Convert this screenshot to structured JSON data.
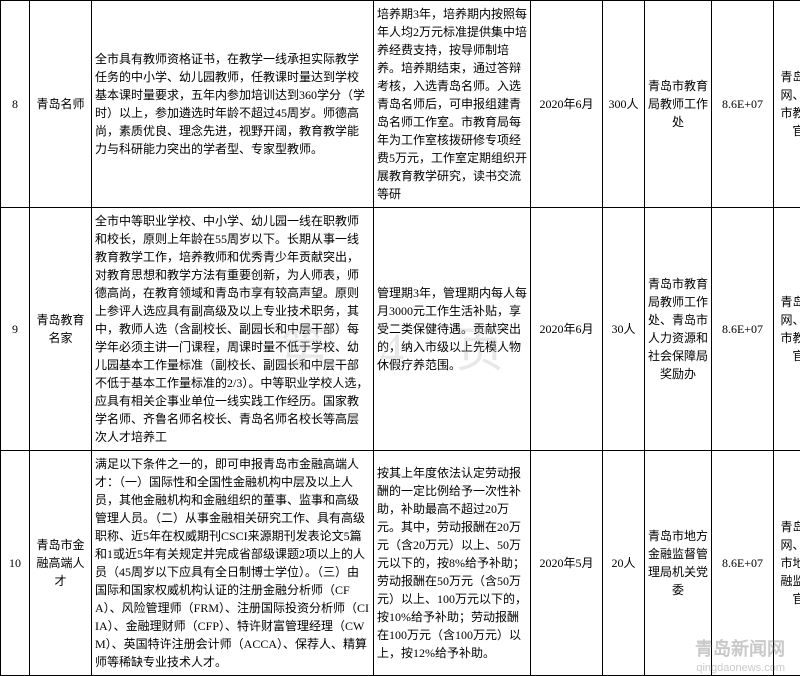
{
  "watermark": {
    "page": "第 4 页",
    "logo": "青岛新闻网",
    "domain": "qingdaonews.com"
  },
  "rows": [
    {
      "idx": "8",
      "name": "青岛名师",
      "desc": "全市具有教师资格证书，在教学一线承担实际教学任务的中小学、幼儿园教师，任教课时量达到学校基本课时量要求，五年内参加培训达到360学分（学时）以上，参加遴选时年龄不超过45周岁。师德高尚，素质优良、理念先进，视野开阔，教育教学能力与科研能力突出的学者型、专家型教师。",
      "policy": "培养期3年，培养期内按照每年人均2万元标准提供集中培养经费支持，按导师制培养。培养期结束，通过答辩考核，入选青岛名师。入选青岛名师后，可申报组建青岛名师工作室。市教育局每年为工作室核拨研修专项经费5万元，工作室定期组织开展教育教学研究，读书交流等研",
      "date": "2020年6月",
      "count": "300人",
      "dept": "青岛市教育局教师工作处",
      "num": "8.6E+07",
      "site": "青岛人才网、青岛市教育局官网"
    },
    {
      "idx": "9",
      "name": "青岛教育名家",
      "desc": "全市中等职业学校、中小学、幼儿园一线在职教师和校长，原则上年龄在55周岁以下。长期从事一线教育教学工作，培养教师和优秀青少年贡献突出，对教育思想和教学方法有重要创新，为人师表，师德高尚，在教育领域和青岛市享有较高声望。原则上参评人选应具有副高级及以上专业技术职务，其中，教师人选（含副校长、副园长和中层干部）每学年必须主讲一门课程，周课时量不低于学校、幼儿园基本工作量标准（副校长、副园长和中层干部不低于基本工作量标准的2/3）。中等职业学校人选，应具有相关企事业单位一线实践工作经历。国家教学名师、齐鲁名师名校长、青岛名师名校长等高层次人才培养工",
      "policy": "管理期3年，管理期内每人每月3000元工作生活补贴，享受二类保健待遇。贡献突出的，纳入市级以上先模人物休假疗养范围。",
      "date": "2020年6月",
      "count": "30人",
      "dept": "青岛市教育局教师工作处、青岛市人力资源和社会保障局奖励办",
      "num": "8.6E+07",
      "site": "青岛人才网、青岛市教育局官网"
    },
    {
      "idx": "10",
      "name": "青岛市金融高端人才",
      "desc": "满足以下条件之一的，即可申报青岛市金融高端人才：（一）国际性和全国性金融机构中层及以上人员，其他金融机构和金融组织的董事、监事和高级管理人员。（二）从事金融相关研究工作、具有高级职称、近5年在权威期刊CSCI来源期刊发表论文5篇和1或近5年有关规定并完成省部级课题2项以上的人员（45周岁以下应具有全日制博士学位）。（三）由国际和国家权威机构认证的注册金融分析师（CFA）、风险管理师（FRM）、注册国际投资分析师（CIIA）、金融理财师（CFP）、特许财富管理经理（CWM）、英国特许注册会计师（ACCA）、保荐人、精算师等稀缺专业技术人才。",
      "policy": "按其上年度依法认定劳动报酬的一定比例给予一次性补助，补助最高不超过20万元。其中，劳动报酬在20万元（含20万元）以上、50万元以下的，按8%给予补助；劳动报酬在50万元（含50万元）以上、100万元以下的，按10%给予补助；劳动报酬在100万元（含100万元）以上，按12%给予补助。",
      "date": "2020年5月",
      "count": "20人",
      "dept": "青岛市地方金融监督管理局机关党委",
      "num": "8.6E+07",
      "site": "青岛人才网、青岛市地方金融监管局官网"
    }
  ]
}
